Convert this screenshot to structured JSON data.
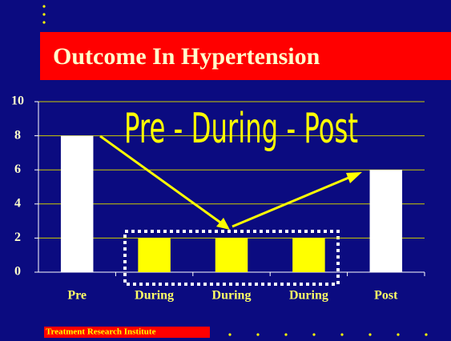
{
  "chart_data": {
    "type": "bar",
    "title": "Outcome In Hypertension",
    "annotation": "Pre - During - Post",
    "footer": "Treatment Research Institute",
    "categories": [
      "Pre",
      "During",
      "During",
      "During",
      "Post"
    ],
    "values": [
      8,
      2,
      2,
      2,
      6
    ],
    "colors": [
      "#ffffff",
      "#ffff00",
      "#ffff00",
      "#ffff00",
      "#ffffff"
    ],
    "ylim": [
      0,
      10
    ],
    "yticks": [
      0,
      2,
      4,
      6,
      8,
      10
    ],
    "grid": true
  }
}
